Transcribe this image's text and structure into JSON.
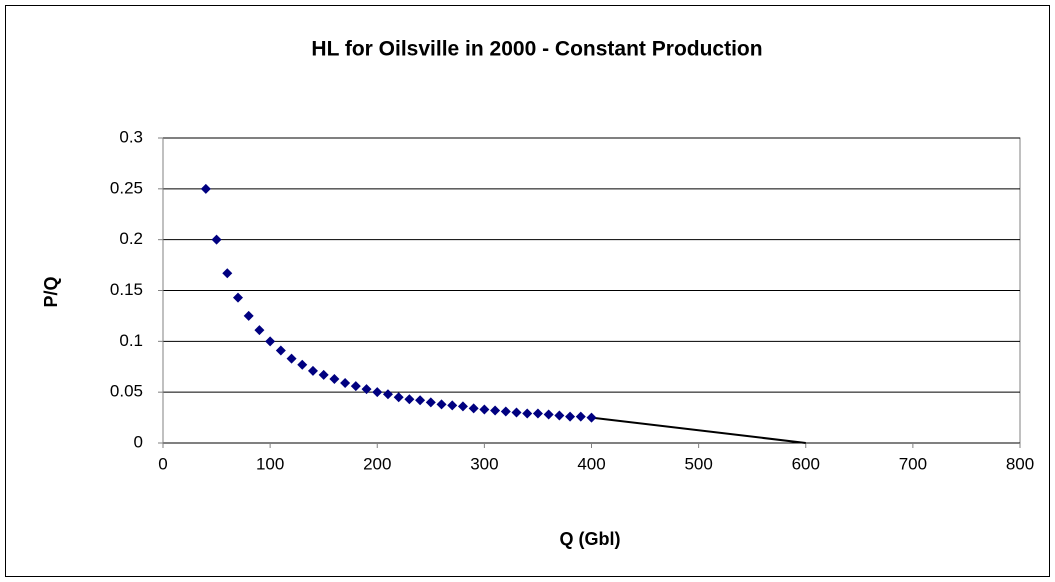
{
  "chart_data": {
    "type": "scatter",
    "title": "HL for Oilsville in 2000 - Constant Production",
    "xlabel": "Q (Gbl)",
    "ylabel": "P/Q",
    "series": [
      {
        "color": "#000080",
        "style": "markers",
        "x": [
          40,
          50,
          60,
          70,
          80,
          90,
          100,
          110,
          120,
          130,
          140,
          150,
          160,
          170,
          180,
          190,
          200,
          210,
          220,
          230,
          240,
          250,
          260,
          270,
          280,
          290,
          300,
          310,
          320,
          330,
          340,
          350,
          360,
          370,
          380,
          390,
          400
        ],
        "values": [
          0.25,
          0.2,
          0.167,
          0.143,
          0.125,
          0.111,
          0.1,
          0.091,
          0.083,
          0.077,
          0.071,
          0.067,
          0.063,
          0.059,
          0.056,
          0.053,
          0.05,
          0.048,
          0.045,
          0.043,
          0.042,
          0.04,
          0.038,
          0.037,
          0.036,
          0.034,
          0.033,
          0.032,
          0.031,
          0.03,
          0.029,
          0.029,
          0.028,
          0.027,
          0.026,
          0.026,
          0.025
        ]
      },
      {
        "color": "#000000",
        "style": "line",
        "x": [
          400,
          600
        ],
        "values": [
          0.025,
          0
        ]
      }
    ],
    "xlim": [
      0,
      800
    ],
    "xticks": [
      0,
      100,
      200,
      300,
      400,
      500,
      600,
      700,
      800
    ],
    "ylim": [
      0,
      0.3
    ],
    "yticks": [
      0,
      0.05,
      0.1,
      0.15,
      0.2,
      0.25,
      0.3
    ],
    "grid": true
  }
}
